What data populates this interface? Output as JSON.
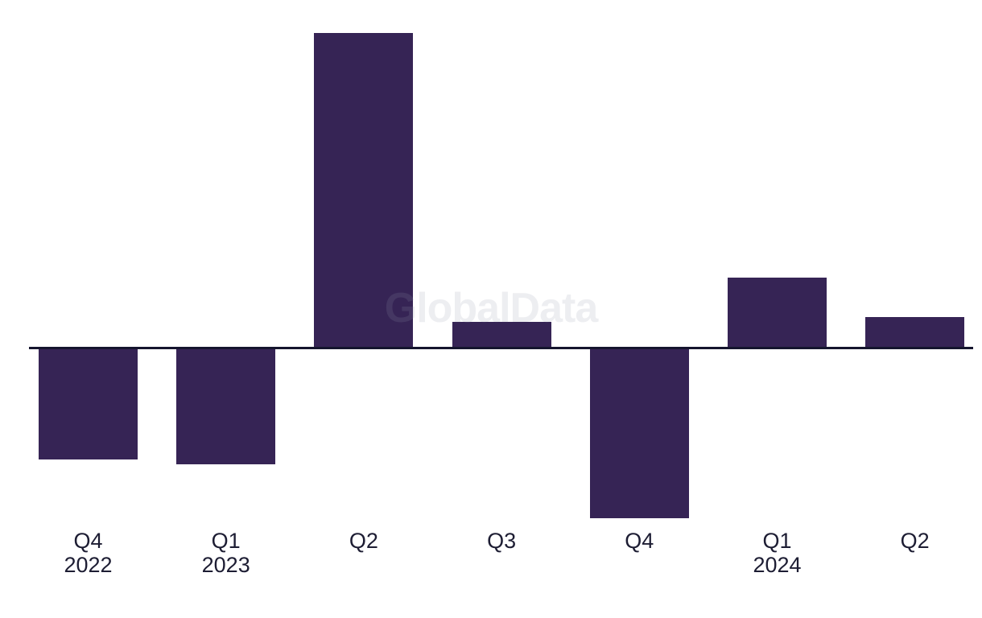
{
  "watermark": {
    "text": "GlobalData"
  },
  "chart_data": {
    "type": "bar",
    "title": "",
    "xlabel": "",
    "ylabel": "",
    "units": "relative (y-axis not shown; values estimated proportional to bar heights)",
    "categories": [
      "Q4 2022",
      "Q1 2023",
      "Q2 2023",
      "Q3 2023",
      "Q4 2023",
      "Q1 2024",
      "Q2 2024"
    ],
    "values": [
      -138,
      -144,
      391,
      32,
      -211,
      87,
      38
    ],
    "x_tick_labels": [
      {
        "quarter": "Q4",
        "year": "2022"
      },
      {
        "quarter": "Q1",
        "year": "2023"
      },
      {
        "quarter": "Q2",
        "year": ""
      },
      {
        "quarter": "Q3",
        "year": ""
      },
      {
        "quarter": "Q4",
        "year": ""
      },
      {
        "quarter": "Q1",
        "year": "2024"
      },
      {
        "quarter": "Q2",
        "year": ""
      }
    ],
    "baseline": 0,
    "grid": false,
    "legend": false,
    "colors": {
      "bar": "#362455",
      "axis_line": "#15152e",
      "tick_label": "#1d1d33",
      "background": "#ffffff",
      "watermark_text": "#949baa"
    }
  }
}
